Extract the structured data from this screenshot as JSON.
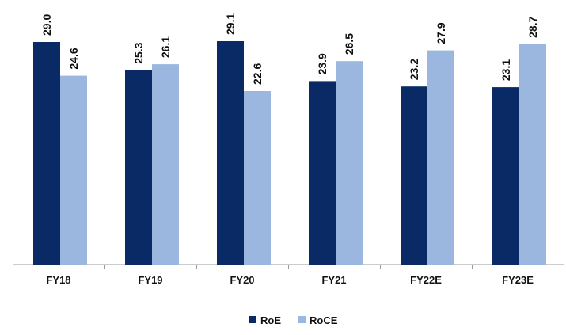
{
  "chart_data": {
    "type": "bar",
    "title": "",
    "xlabel": "",
    "ylabel": "",
    "categories": [
      "FY18",
      "FY19",
      "FY20",
      "FY21",
      "FY22E",
      "FY23E"
    ],
    "series": [
      {
        "name": "RoE",
        "color": "#0a2a66",
        "values": [
          29.0,
          25.3,
          29.1,
          23.9,
          23.2,
          23.1
        ]
      },
      {
        "name": "RoCE",
        "color": "#9bb7df",
        "values": [
          24.6,
          26.1,
          22.6,
          26.5,
          27.9,
          28.7
        ]
      }
    ],
    "ylim": [
      0,
      30
    ],
    "grid": false,
    "legend_position": "bottom-center",
    "data_labels": true,
    "value_format": "one decimal"
  }
}
